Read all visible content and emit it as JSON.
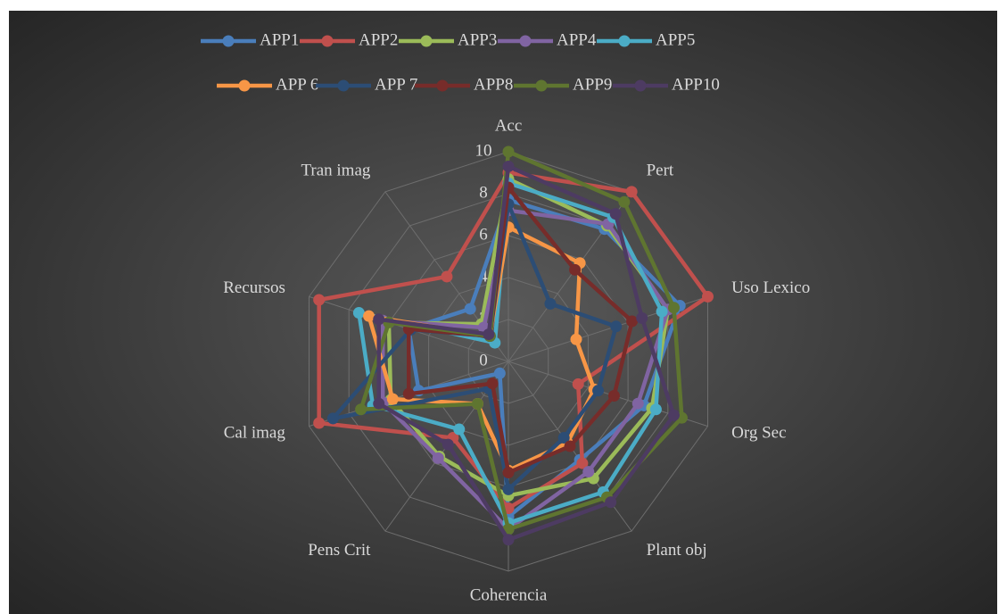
{
  "chart_data": {
    "type": "radar",
    "categories": [
      "Acc",
      "Pert",
      "Uso Lexico",
      "Org Sec",
      "Plant obj",
      "Coherencia",
      "Pens Crit",
      "Cal imag",
      "Recursos",
      "Tran imag"
    ],
    "ylim": [
      0,
      10
    ],
    "yticks": [
      0,
      2,
      4,
      6,
      8,
      10
    ],
    "grid": true,
    "legend": "top",
    "series": [
      {
        "name": "APP1",
        "color": "#4a7ebb",
        "values": [
          7.7,
          7.8,
          8.6,
          6.8,
          5.8,
          7.4,
          0.7,
          4.5,
          5,
          3.1
        ]
      },
      {
        "name": "APP2",
        "color": "#c0504d",
        "values": [
          9,
          10,
          10,
          3.5,
          6,
          7,
          4.5,
          9.5,
          9.5,
          5
        ]
      },
      {
        "name": "APP3",
        "color": "#9bbb59",
        "values": [
          8.7,
          8,
          8,
          7.2,
          6.9,
          6.4,
          5.6,
          5.9,
          6,
          2.2
        ]
      },
      {
        "name": "APP4",
        "color": "#8064a2",
        "values": [
          7.2,
          8.1,
          8,
          6.5,
          6.5,
          8,
          5.7,
          6.3,
          6.3,
          2
        ]
      },
      {
        "name": "APP5",
        "color": "#4bacc6",
        "values": [
          8.5,
          8.5,
          7.7,
          7.4,
          7.7,
          7.7,
          4,
          6.8,
          7.5,
          1.1
        ]
      },
      {
        "name": "APP 6",
        "color": "#f79646",
        "values": [
          6.4,
          5.8,
          3.4,
          4.3,
          4.8,
          5.2,
          2.5,
          5.8,
          7,
          1.5
        ]
      },
      {
        "name": "APP 7",
        "color": "#2c4d75",
        "values": [
          7.5,
          3.4,
          5.4,
          4.5,
          4.5,
          6.1,
          1.6,
          8.8,
          4.9,
          1.5
        ]
      },
      {
        "name": "APP8",
        "color": "#772c2a",
        "values": [
          8.3,
          5.4,
          6.2,
          5.3,
          5,
          5.3,
          1.3,
          5,
          5,
          1.5
        ]
      },
      {
        "name": "APP9",
        "color": "#5f7530",
        "values": [
          10,
          9.4,
          8.3,
          8.7,
          8,
          8,
          2.5,
          7.4,
          6,
          1.5
        ]
      },
      {
        "name": "APP10",
        "color": "#4d3b62",
        "values": [
          9.3,
          8.7,
          6.7,
          8.3,
          8.3,
          8.5,
          4.9,
          6.5,
          6.5,
          1.6
        ]
      }
    ]
  }
}
